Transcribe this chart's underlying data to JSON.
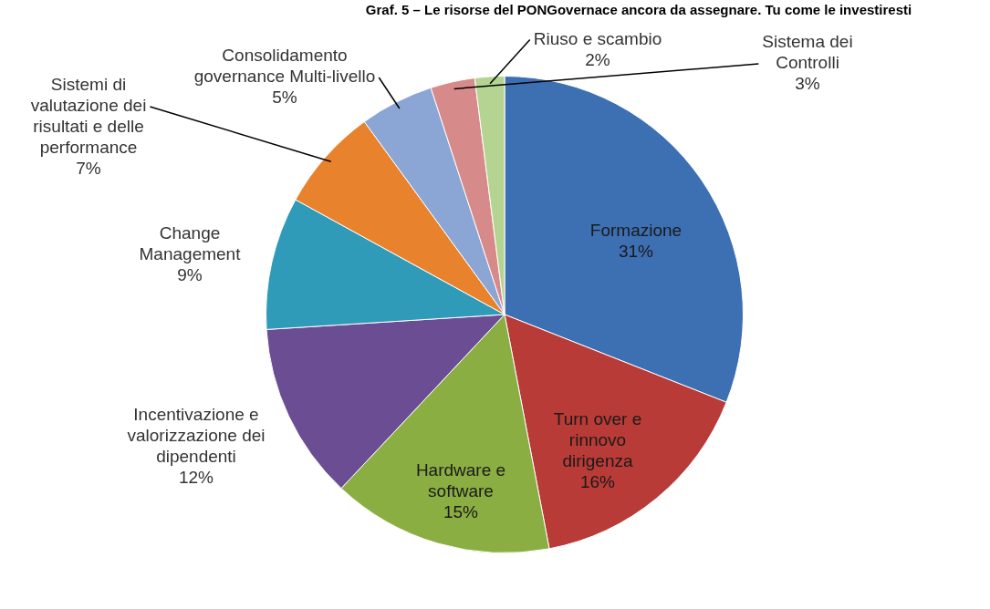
{
  "chart_data": {
    "type": "pie",
    "title": "Graf. 5 – Le risorse del PONGovernace ancora da assegnare. Tu come le investiresti",
    "categories": [
      "Formazione",
      "Turn over e rinnovo dirigenza",
      "Hardware e software",
      "Incentivazione e valorizzazione dei dipendenti",
      "Change Management",
      "Sistemi di valutazione dei risultati e delle performance",
      "Consolidamento governance Multi-livello",
      "Sistema dei Controlli",
      "Riuso e scambio"
    ],
    "values": [
      31,
      16,
      15,
      12,
      9,
      7,
      5,
      3,
      2
    ],
    "value_labels": [
      "31%",
      "16%",
      "15%",
      "12%",
      "9%",
      "7%",
      "5%",
      "3%",
      "2%"
    ],
    "colors": [
      "#3d6fb3",
      "#b83b37",
      "#8bae42",
      "#6a4d92",
      "#2f9bb8",
      "#e8822d",
      "#8ba5d4",
      "#d68b8a",
      "#b5d491"
    ],
    "legend": false
  }
}
